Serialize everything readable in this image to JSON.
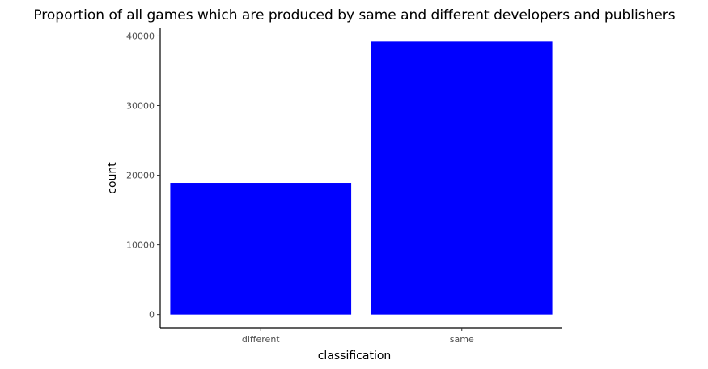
{
  "chart_data": {
    "type": "bar",
    "title": "Proportion of all games which are produced by same and different developers and publishers",
    "xlabel": "classification",
    "ylabel": "count",
    "categories": [
      "different",
      "same"
    ],
    "values": [
      18900,
      39200
    ],
    "ylim": [
      -1900,
      41100
    ],
    "yticks": [
      0,
      10000,
      20000,
      30000,
      40000
    ],
    "ytick_labels": [
      "0",
      "10000",
      "20000",
      "30000",
      "40000"
    ],
    "grid": false,
    "legend": "none",
    "bar_color": "#0000ff"
  }
}
